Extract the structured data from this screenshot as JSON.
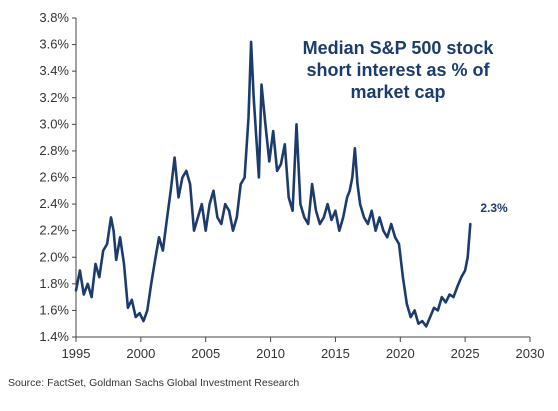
{
  "colors": {
    "line": "#1d3c6e",
    "title": "#1d3c6e",
    "axis": "#444444",
    "text": "#333333"
  },
  "chart_data": {
    "type": "line",
    "title_lines": [
      "Median S&P 500 stock",
      "short interest as % of",
      "market cap"
    ],
    "xlabel": "",
    "ylabel": "",
    "xlim": [
      1995,
      2030
    ],
    "ylim": [
      1.4,
      3.8
    ],
    "x_ticks": [
      1995,
      2000,
      2005,
      2010,
      2015,
      2020,
      2025,
      2030
    ],
    "x_tick_labels": [
      "1995",
      "2000",
      "2005",
      "2010",
      "2015",
      "2020",
      "2025",
      "2030"
    ],
    "y_ticks": [
      1.4,
      1.6,
      1.8,
      2.0,
      2.2,
      2.4,
      2.6,
      2.8,
      3.0,
      3.2,
      3.4,
      3.6,
      3.8
    ],
    "y_tick_labels": [
      "1.4%",
      "1.6%",
      "1.8%",
      "2.0%",
      "2.2%",
      "2.4%",
      "2.6%",
      "2.8%",
      "3.0%",
      "3.2%",
      "3.4%",
      "3.6%",
      "3.8%"
    ],
    "grid": false,
    "end_label": "2.3%",
    "series": [
      {
        "x": [
          1995.0,
          1995.3,
          1995.6,
          1995.9,
          1996.2,
          1996.5,
          1996.8,
          1997.1,
          1997.4,
          1997.7,
          1997.9,
          1998.1,
          1998.4,
          1998.7,
          1999.0,
          1999.3,
          1999.6,
          1999.9,
          2000.2,
          2000.5,
          2000.8,
          2001.1,
          2001.4,
          2001.7,
          2002.0,
          2002.3,
          2002.6,
          2002.9,
          2003.2,
          2003.5,
          2003.8,
          2004.1,
          2004.4,
          2004.7,
          2005.0,
          2005.3,
          2005.6,
          2005.9,
          2006.2,
          2006.5,
          2006.8,
          2007.1,
          2007.4,
          2007.7,
          2008.0,
          2008.3,
          2008.5,
          2008.7,
          2008.9,
          2009.1,
          2009.3,
          2009.6,
          2009.9,
          2010.2,
          2010.5,
          2010.8,
          2011.1,
          2011.4,
          2011.7,
          2012.0,
          2012.3,
          2012.6,
          2012.9,
          2013.2,
          2013.5,
          2013.8,
          2014.1,
          2014.4,
          2014.7,
          2015.0,
          2015.3,
          2015.6,
          2015.9,
          2016.1,
          2016.3,
          2016.5,
          2016.7,
          2016.9,
          2017.2,
          2017.5,
          2017.8,
          2018.1,
          2018.4,
          2018.7,
          2019.0,
          2019.3,
          2019.6,
          2019.9,
          2020.2,
          2020.5,
          2020.8,
          2021.1,
          2021.4,
          2021.7,
          2022.0,
          2022.3,
          2022.6,
          2022.9,
          2023.2,
          2023.5,
          2023.8,
          2024.1,
          2024.4,
          2024.7,
          2025.0,
          2025.2,
          2025.4
        ],
        "y": [
          1.75,
          1.9,
          1.72,
          1.8,
          1.7,
          1.95,
          1.85,
          2.05,
          2.1,
          2.3,
          2.2,
          1.98,
          2.15,
          1.95,
          1.62,
          1.68,
          1.55,
          1.58,
          1.52,
          1.6,
          1.8,
          1.98,
          2.15,
          2.05,
          2.28,
          2.5,
          2.75,
          2.45,
          2.6,
          2.65,
          2.55,
          2.2,
          2.3,
          2.4,
          2.2,
          2.4,
          2.5,
          2.3,
          2.25,
          2.4,
          2.35,
          2.2,
          2.3,
          2.55,
          2.6,
          3.05,
          3.62,
          3.2,
          2.9,
          2.6,
          3.3,
          3.0,
          2.72,
          2.95,
          2.65,
          2.7,
          2.85,
          2.45,
          2.35,
          3.0,
          2.4,
          2.3,
          2.25,
          2.55,
          2.35,
          2.25,
          2.3,
          2.4,
          2.28,
          2.35,
          2.2,
          2.3,
          2.45,
          2.5,
          2.6,
          2.82,
          2.55,
          2.4,
          2.3,
          2.25,
          2.35,
          2.2,
          2.3,
          2.2,
          2.15,
          2.25,
          2.15,
          2.1,
          1.85,
          1.65,
          1.55,
          1.6,
          1.5,
          1.52,
          1.48,
          1.55,
          1.62,
          1.6,
          1.7,
          1.66,
          1.72,
          1.7,
          1.78,
          1.85,
          1.9,
          2.0,
          2.25
        ]
      }
    ]
  },
  "source": "Source: FactSet, Goldman Sachs Global Investment Research"
}
